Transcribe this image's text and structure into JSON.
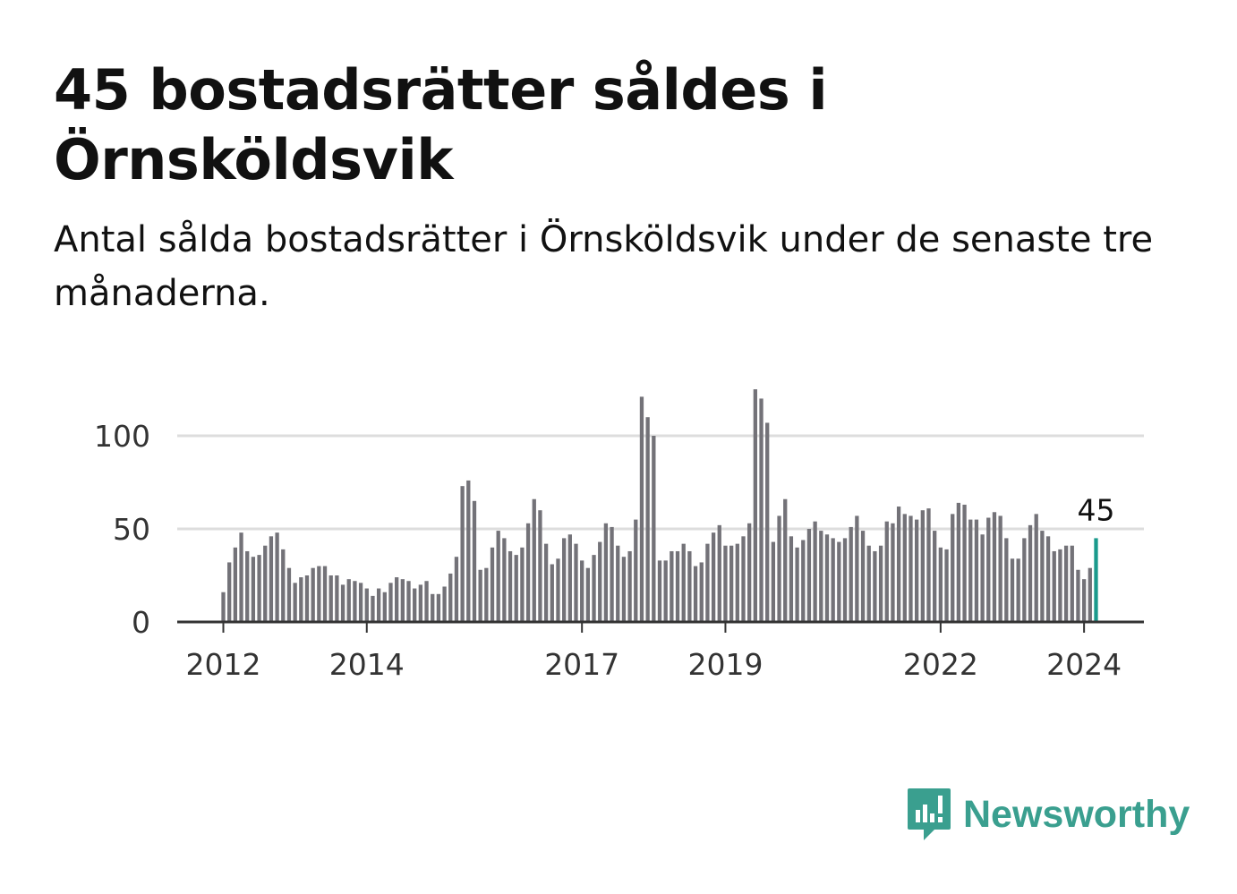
{
  "title": "45 bostadsrätter såldes i Örnsköldsvik",
  "subtitle": "Antal sålda bostadsrätter i Örnsköldsvik under de senaste tre månaderna.",
  "brand": {
    "name": "Newsworthy",
    "icon": "newsworthy-logo-icon",
    "color": "#3a9f8f"
  },
  "colors": {
    "bar": "#737278",
    "highlight": "#1a9a8c",
    "grid": "#dddddd",
    "axis": "#333333"
  },
  "chart_data": {
    "type": "bar",
    "title": "",
    "xlabel": "",
    "ylabel": "",
    "ylim": [
      0,
      130
    ],
    "grid": true,
    "y_ticks": [
      0,
      50,
      100
    ],
    "x_ticks": [
      "2012",
      "2014",
      "2017",
      "2019",
      "2022",
      "2024"
    ],
    "start": "2012-01",
    "end": "2024-03",
    "annotation": {
      "label": "45",
      "value": 45,
      "month": "2024-03"
    },
    "series": [
      {
        "values": [
          16,
          32,
          40,
          48,
          38,
          35,
          36,
          41,
          46,
          48,
          39,
          29,
          21,
          24,
          25,
          29,
          30,
          30,
          25,
          25,
          20,
          23,
          22,
          21,
          18,
          14,
          18,
          16,
          21,
          24,
          23,
          22,
          18,
          20,
          22,
          15,
          15,
          19,
          26,
          35,
          73,
          76,
          65,
          28,
          29,
          40,
          49,
          45,
          38,
          36,
          40,
          53,
          66,
          60,
          42,
          31,
          34,
          45,
          47,
          42,
          33,
          29,
          36,
          43,
          53,
          51,
          41,
          35,
          38,
          55,
          121,
          110,
          100,
          33,
          33,
          38,
          38,
          42,
          38,
          30,
          32,
          42,
          48,
          52,
          41,
          41,
          42,
          46,
          53,
          125,
          120,
          107,
          43,
          57,
          66,
          46,
          40,
          44,
          50,
          54,
          49,
          47,
          45,
          43,
          45,
          51,
          57,
          49,
          41,
          38,
          41,
          54,
          53,
          62,
          58,
          57,
          55,
          60,
          61,
          49,
          40,
          39,
          58,
          64,
          63,
          55,
          55,
          47,
          56,
          59,
          57,
          45,
          34,
          34,
          45,
          52,
          58,
          49,
          46,
          38,
          39,
          41,
          41,
          28,
          23,
          29,
          45
        ]
      }
    ]
  }
}
